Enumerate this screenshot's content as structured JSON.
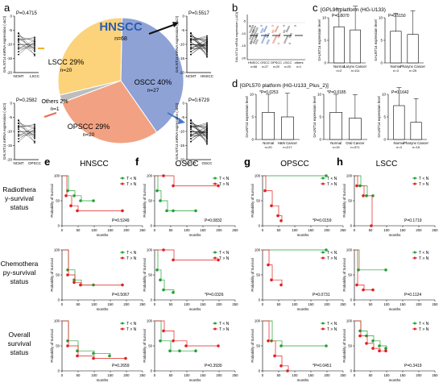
{
  "panel_letters": {
    "a": "a",
    "b": "b",
    "c": "c",
    "d": "d",
    "e": "e",
    "f": "f",
    "g": "g",
    "h": "h"
  },
  "colors": {
    "lscc": "#fcd27a",
    "oscc": "#8ea2d6",
    "opscc": "#f2a283",
    "others": "#bdbdbd",
    "red": "#e02020",
    "green": "#22a036",
    "black": "#111111"
  },
  "pie": {
    "title": "HNSCC",
    "n": "n=68",
    "slices": [
      {
        "name": "OSCC 40%",
        "n": "n=27",
        "value": 40,
        "color": "#8ea2d6"
      },
      {
        "name": "OPSCC 29%",
        "n": "n=20",
        "value": 29,
        "color": "#f2a283"
      },
      {
        "name": "Others 2%",
        "n": "n=1",
        "value": 2,
        "color": "#bdbdbd"
      },
      {
        "name": "LSCC 29%",
        "n": "n=20",
        "value": 29,
        "color": "#fcd27a"
      }
    ]
  },
  "paired": {
    "ylabel": "GALNT14 mRNA expression (-ΔCt)",
    "plots": [
      {
        "id": "lscc",
        "p": "P=0.4715",
        "xlabels": [
          "NCMT",
          "LSCC"
        ],
        "yticks": [
          "0",
          "-5",
          "-10",
          "-15",
          "-20"
        ]
      },
      {
        "id": "opscc",
        "p": "P=0.2582",
        "xlabels": [
          "NCMT",
          "OPSCC"
        ],
        "yticks": [
          "0",
          "-5",
          "-10",
          "-15",
          "-20"
        ]
      },
      {
        "id": "hnscc",
        "p": "P=0.5517",
        "xlabels": [
          "NCMT",
          "HNSCC"
        ],
        "yticks": [
          "0",
          "-5",
          "-10",
          "-15",
          "-20"
        ]
      },
      {
        "id": "oscc",
        "p": "P=0.6729",
        "xlabels": [
          "NCMT",
          "OSCC"
        ],
        "yticks": [
          "0",
          "-5",
          "-10",
          "-15",
          "-20"
        ]
      }
    ]
  },
  "panel_b": {
    "ylabel": "GALNT14 mRNA expression (-ΔCt)",
    "groups": [
      "HNSCC",
      "OSCC",
      "OPSCC",
      "LSCC",
      "others"
    ],
    "ns": [
      "n=68",
      "n=27",
      "n=20",
      "n=20",
      "n=1"
    ],
    "yticks": [
      "-5",
      "-10",
      "-15",
      "-20"
    ]
  },
  "panel_c": {
    "title": "[GPL96 platform (HG-U133)",
    "ylabel": "GALNT14 expression level",
    "plots": [
      {
        "p": "P=0.8070",
        "xlabels": [
          "Normal",
          "Larynx Cancer"
        ],
        "ns": [
          "n=2",
          "n=111"
        ],
        "values": [
          8,
          7.3
        ],
        "ylim": [
          0,
          10
        ],
        "yticks": [
          "0",
          "5",
          "10"
        ]
      },
      {
        "p": "P=0.5150",
        "xlabels": [
          "Normal",
          "Pharynx Cancer"
        ],
        "ns": [
          "n=3",
          "n=25"
        ],
        "values": [
          7,
          6.3
        ],
        "ylim": [
          0,
          10
        ],
        "yticks": [
          "0",
          "5",
          "10"
        ]
      }
    ]
  },
  "panel_d": {
    "title": "[GPL570 platform (HG-U133_Plus_2)]",
    "ylabel": "GALNT14 expression level",
    "plots": [
      {
        "p": "*P=0.0253",
        "xlabels": [
          "Normal",
          "H&N Cancer"
        ],
        "ns": [
          "n=20",
          "n=217"
        ],
        "values": [
          6,
          5
        ],
        "ylim": [
          0,
          10
        ],
        "yticks": [
          "0",
          "5",
          "10"
        ]
      },
      {
        "p": "*P=0.0185",
        "xlabels": [
          "Normal",
          "Oral Cancer"
        ],
        "ns": [
          "n=15",
          "n=371"
        ],
        "values": [
          6,
          4.7
        ],
        "ylim": [
          0,
          10
        ],
        "yticks": [
          "0",
          "5",
          "10"
        ]
      },
      {
        "p": "P=0.1642",
        "xlabels": [
          "Normal",
          "Pharynx Cancer"
        ],
        "ns": [
          "n=3",
          "n=15"
        ],
        "values": [
          7.5,
          3.8
        ],
        "ylim": [
          0,
          10
        ],
        "yticks": [
          "0",
          "5",
          "10"
        ]
      }
    ]
  },
  "km": {
    "columns": [
      "HNSCC",
      "OSCC",
      "OPSCC",
      "LSCC"
    ],
    "rows": [
      [
        "Radiothera",
        "y-survival",
        "status"
      ],
      [
        "Chemothera",
        "py-survival",
        "status"
      ],
      [
        "Overall",
        "survival",
        "status"
      ]
    ],
    "legend": [
      "T < N",
      "T > N"
    ],
    "xlabel": "months",
    "ylabel": "Probability of Survival",
    "xticks": [
      "0",
      "50",
      "100",
      "150",
      "200",
      "250"
    ],
    "yticks": [
      "0",
      "50",
      "100"
    ]
  },
  "chart_data": [
    {
      "type": "pie",
      "title": "HNSCC",
      "categories": [
        "OSCC",
        "OPSCC",
        "Others",
        "LSCC"
      ],
      "values": [
        40,
        29,
        2,
        29
      ],
      "counts": [
        27,
        20,
        1,
        20
      ]
    },
    {
      "type": "bar",
      "title": "[GPL96 platform (HG-U133)",
      "categories": [
        "Normal",
        "Larynx Cancer"
      ],
      "values": [
        8,
        7.3
      ],
      "ylabel": "GALNT14 expression level",
      "ylim": [
        0,
        10
      ]
    },
    {
      "type": "bar",
      "categories": [
        "Normal",
        "Pharynx Cancer"
      ],
      "values": [
        7,
        6.3
      ],
      "ylabel": "GALNT14 expression level",
      "ylim": [
        0,
        10
      ]
    },
    {
      "type": "bar",
      "title": "[GPL570 platform (HG-U133_Plus_2)]",
      "categories": [
        "Normal",
        "H&N Cancer"
      ],
      "values": [
        6,
        5
      ],
      "ylim": [
        0,
        10
      ]
    },
    {
      "type": "bar",
      "categories": [
        "Normal",
        "Oral Cancer"
      ],
      "values": [
        6,
        4.7
      ],
      "ylim": [
        0,
        10
      ]
    },
    {
      "type": "bar",
      "categories": [
        "Normal",
        "Pharynx Cancer"
      ],
      "values": [
        7.5,
        3.8
      ],
      "ylim": [
        0,
        10
      ]
    },
    {
      "type": "line",
      "panel": "e",
      "row": 1,
      "title": "HNSCC",
      "p": "P=0.5249",
      "series": [
        {
          "name": "T < N",
          "x": [
            0,
            20,
            40,
            60,
            100
          ],
          "y": [
            100,
            70,
            60,
            50,
            50
          ]
        },
        {
          "name": "T > N",
          "x": [
            0,
            15,
            30,
            50,
            190
          ],
          "y": [
            100,
            60,
            40,
            30,
            30
          ]
        }
      ],
      "xlim": [
        0,
        250
      ],
      "ylim": [
        0,
        100
      ]
    },
    {
      "type": "line",
      "panel": "f",
      "row": 1,
      "title": "OSCC",
      "p": "P=0.0832",
      "series": [
        {
          "name": "T < N",
          "x": [
            0,
            10,
            20,
            40,
            60,
            130
          ],
          "y": [
            100,
            70,
            50,
            30,
            30,
            30
          ]
        },
        {
          "name": "T > N",
          "x": [
            0,
            30,
            60,
            200
          ],
          "y": [
            100,
            100,
            80,
            80
          ]
        }
      ],
      "xlim": [
        0,
        250
      ],
      "ylim": [
        0,
        100
      ]
    },
    {
      "type": "line",
      "panel": "g",
      "row": 1,
      "title": "OPSCC",
      "p": "*P=0.0159",
      "series": [
        {
          "name": "T < N",
          "x": [
            0,
            200
          ],
          "y": [
            100,
            100
          ]
        },
        {
          "name": "T > N",
          "x": [
            0,
            10,
            30,
            50,
            60
          ],
          "y": [
            100,
            70,
            40,
            20,
            10
          ]
        }
      ],
      "xlim": [
        0,
        250
      ],
      "ylim": [
        0,
        100
      ]
    },
    {
      "type": "line",
      "panel": "h",
      "row": 1,
      "title": "LSCC",
      "p": "P=0.1719",
      "series": [
        {
          "name": "T < N",
          "x": [
            0,
            20,
            40,
            60
          ],
          "y": [
            100,
            80,
            60,
            60
          ]
        },
        {
          "name": "T > N",
          "x": [
            0,
            10,
            30,
            55
          ],
          "y": [
            100,
            80,
            60,
            0
          ]
        }
      ],
      "xlim": [
        0,
        250
      ],
      "ylim": [
        0,
        100
      ]
    },
    {
      "type": "line",
      "panel": "e",
      "row": 2,
      "p": "P=0.5067",
      "series": [
        {
          "name": "T < N",
          "x": [
            0,
            20,
            40,
            60,
            100
          ],
          "y": [
            100,
            60,
            40,
            30,
            30
          ]
        },
        {
          "name": "T > N",
          "x": [
            0,
            20,
            40,
            60,
            190
          ],
          "y": [
            100,
            50,
            35,
            30,
            30
          ]
        }
      ],
      "xlim": [
        0,
        250
      ],
      "ylim": [
        0,
        100
      ]
    },
    {
      "type": "line",
      "panel": "f",
      "row": 2,
      "p": "*P=0.0326",
      "series": [
        {
          "name": "T < N",
          "x": [
            0,
            10,
            20,
            30,
            60
          ],
          "y": [
            100,
            60,
            40,
            20,
            15
          ]
        },
        {
          "name": "T > N",
          "x": [
            0,
            30,
            60,
            200
          ],
          "y": [
            100,
            100,
            80,
            80
          ]
        }
      ],
      "xlim": [
        0,
        250
      ],
      "ylim": [
        0,
        100
      ]
    },
    {
      "type": "line",
      "panel": "g",
      "row": 2,
      "p": "P=0.0731",
      "series": [
        {
          "name": "T < N",
          "x": [
            0,
            200
          ],
          "y": [
            100,
            100
          ]
        },
        {
          "name": "T > N",
          "x": [
            0,
            20,
            30,
            60
          ],
          "y": [
            100,
            70,
            40,
            30
          ]
        }
      ],
      "xlim": [
        0,
        250
      ],
      "ylim": [
        0,
        100
      ]
    },
    {
      "type": "line",
      "panel": "h",
      "row": 2,
      "p": "P=0.1124",
      "series": [
        {
          "name": "T < N",
          "x": [
            0,
            15,
            100
          ],
          "y": [
            100,
            60,
            60
          ]
        },
        {
          "name": "T > N",
          "x": [
            0,
            10,
            30,
            60
          ],
          "y": [
            100,
            30,
            20,
            20
          ]
        }
      ],
      "xlim": [
        0,
        250
      ],
      "ylim": [
        0,
        100
      ]
    },
    {
      "type": "line",
      "panel": "e",
      "row": 3,
      "p": "P=0.2659",
      "series": [
        {
          "name": "T < N",
          "x": [
            0,
            20,
            50,
            100,
            150
          ],
          "y": [
            100,
            60,
            40,
            35,
            30
          ]
        },
        {
          "name": "T > N",
          "x": [
            0,
            20,
            50,
            100,
            200
          ],
          "y": [
            100,
            50,
            30,
            25,
            25
          ]
        }
      ],
      "xlim": [
        0,
        250
      ],
      "ylim": [
        0,
        100
      ]
    },
    {
      "type": "line",
      "panel": "f",
      "row": 3,
      "p": "P=0.3930",
      "series": [
        {
          "name": "T < N",
          "x": [
            0,
            20,
            50,
            80,
            130
          ],
          "y": [
            100,
            60,
            40,
            40,
            40
          ]
        },
        {
          "name": "T > N",
          "x": [
            0,
            30,
            60,
            100,
            200
          ],
          "y": [
            100,
            80,
            60,
            50,
            50
          ]
        }
      ],
      "xlim": [
        0,
        250
      ],
      "ylim": [
        0,
        100
      ]
    },
    {
      "type": "line",
      "panel": "g",
      "row": 3,
      "p": "*P=0.0451",
      "series": [
        {
          "name": "T < N",
          "x": [
            0,
            30,
            60,
            200
          ],
          "y": [
            100,
            60,
            50,
            50
          ]
        },
        {
          "name": "T > N",
          "x": [
            0,
            20,
            40,
            60,
            80
          ],
          "y": [
            100,
            60,
            30,
            10,
            0
          ]
        }
      ],
      "xlim": [
        0,
        250
      ],
      "ylim": [
        0,
        100
      ]
    },
    {
      "type": "line",
      "panel": "h",
      "row": 3,
      "p": "P=0.3419",
      "series": [
        {
          "name": "T < N",
          "x": [
            0,
            20,
            40,
            60,
            80,
            100
          ],
          "y": [
            100,
            80,
            70,
            60,
            50,
            45
          ]
        },
        {
          "name": "T > N",
          "x": [
            0,
            20,
            40,
            60,
            80,
            100
          ],
          "y": [
            100,
            70,
            55,
            45,
            40,
            40
          ]
        }
      ],
      "xlim": [
        0,
        250
      ],
      "ylim": [
        0,
        100
      ]
    }
  ]
}
